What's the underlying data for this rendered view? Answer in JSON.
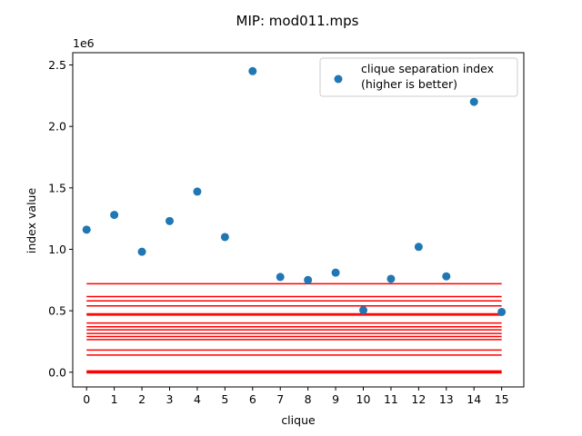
{
  "chart_data": {
    "type": "scatter",
    "title": "MIP: mod011.mps",
    "xlabel": "clique",
    "ylabel": "index value",
    "offset_text": "1e6",
    "xlim": [
      -0.5,
      15.8
    ],
    "ylim": [
      -120000,
      2600000
    ],
    "xticks": [
      0,
      1,
      2,
      3,
      4,
      5,
      6,
      7,
      8,
      9,
      10,
      11,
      12,
      13,
      14,
      15
    ],
    "yticks": [
      0,
      500000,
      1000000,
      1500000,
      2000000,
      2500000
    ],
    "ytick_labels": [
      "0.0",
      "0.5",
      "1.0",
      "1.5",
      "2.0",
      "2.5"
    ],
    "grid": false,
    "legend": {
      "placement": "top-right",
      "lines": [
        "clique separation index",
        "(higher is better)"
      ]
    },
    "series": [
      {
        "name": "clique separation index\n(higher is better)",
        "color": "#1f77b4",
        "x": [
          0,
          1,
          2,
          3,
          4,
          5,
          6,
          7,
          8,
          9,
          10,
          11,
          12,
          13,
          14,
          15
        ],
        "y": [
          1160000,
          1280000,
          980000,
          1230000,
          1470000,
          1100000,
          2450000,
          775000,
          750000,
          810000,
          505000,
          760000,
          1020000,
          780000,
          2200000,
          490000
        ]
      }
    ],
    "hlines": {
      "color": "#ff0000",
      "xmin": 0,
      "xmax": 15,
      "y": [
        720000,
        615000,
        580000,
        540000,
        475000,
        465000,
        400000,
        370000,
        345000,
        315000,
        290000,
        265000,
        180000,
        140000,
        10000,
        0,
        -5000
      ]
    }
  }
}
